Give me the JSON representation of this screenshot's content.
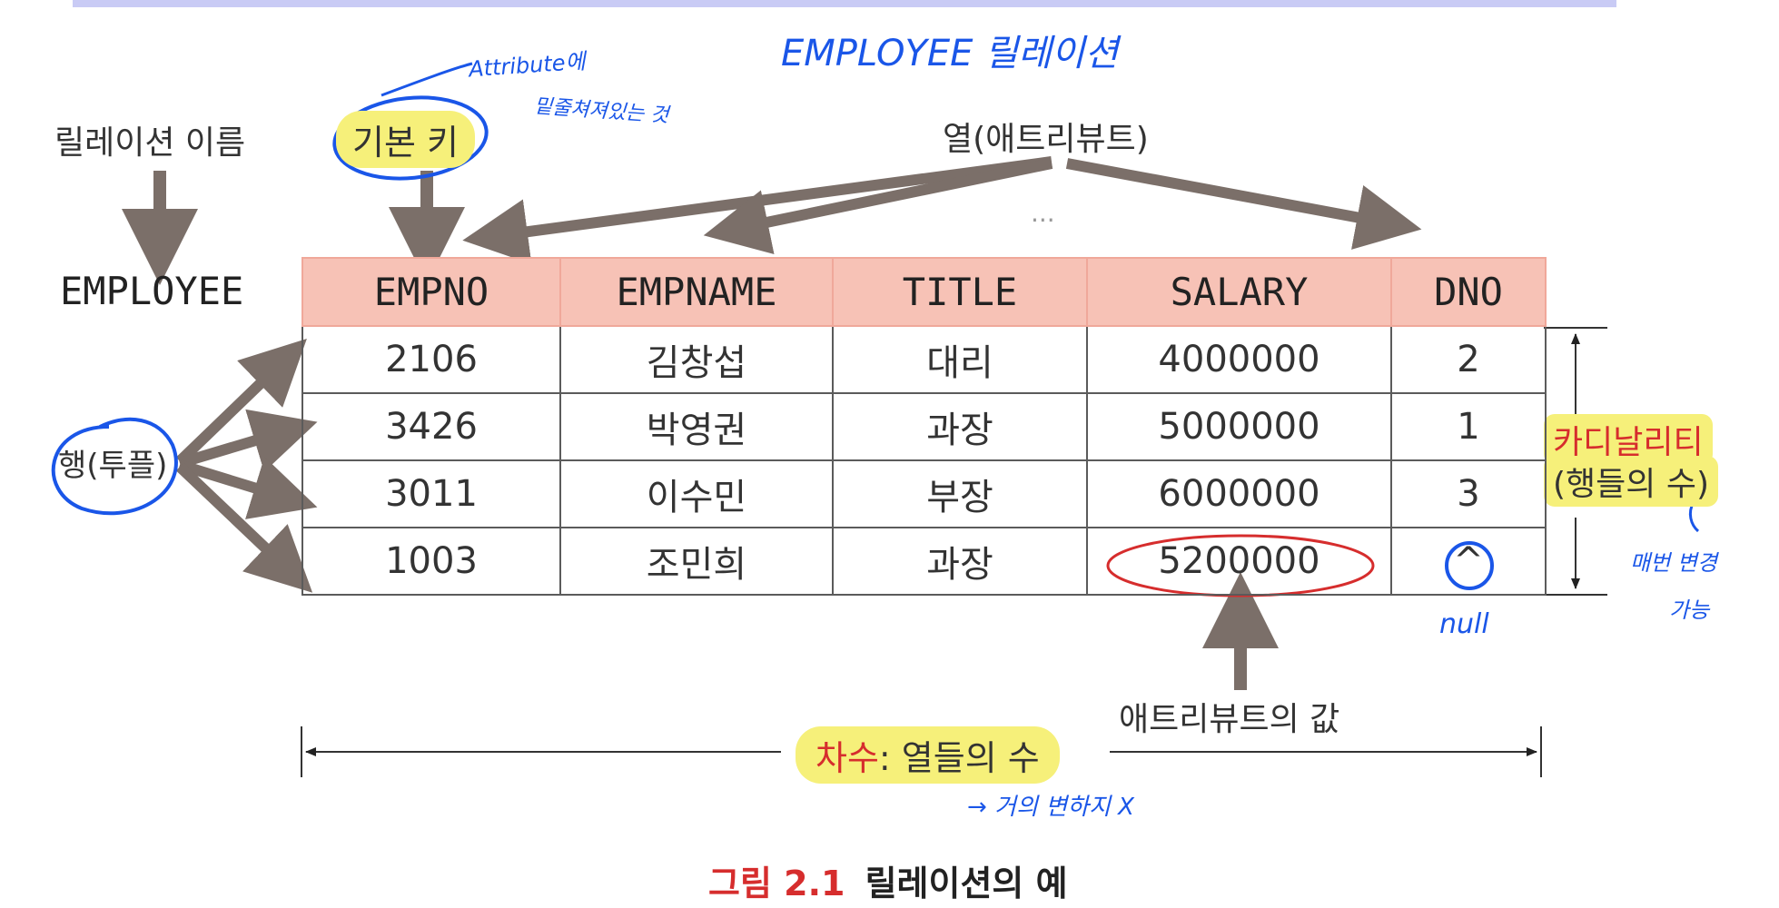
{
  "labels": {
    "relation_name_caption": "릴레이션 이름",
    "relation_name": "EMPLOYEE",
    "primary_key": "기본 키",
    "columns_caption": "열(애트리뷰트)",
    "ellipsis": "...",
    "rows_caption": "행(투플)",
    "cardinality": "카디날리티",
    "cardinality_desc": "(행들의 수)",
    "attribute_value": "애트리뷰트의 값",
    "degree_term": "차수",
    "degree_desc": ": 열들의 수",
    "figure_number": "그림 2.1",
    "figure_title": "릴레이션의 예"
  },
  "table": {
    "headers": [
      "EMPNO",
      "EMPNAME",
      "TITLE",
      "SALARY",
      "DNO"
    ],
    "rows": [
      [
        "2106",
        "김창섭",
        "대리",
        "4000000",
        "2"
      ],
      [
        "3426",
        "박영권",
        "과장",
        "5000000",
        "1"
      ],
      [
        "3011",
        "이수민",
        "부장",
        "6000000",
        "3"
      ],
      [
        "1003",
        "조민희",
        "과장",
        "5200000",
        "^"
      ]
    ]
  },
  "handwritten": {
    "top_title": "EMPLOYEE 릴레이션",
    "attribute_note": "Attribute에",
    "attribute_note2": "밑줄쳐져있는 것",
    "null_note": "null",
    "cardinality_note": "매번 변경",
    "cardinality_note2": "가능",
    "degree_note": "→ 거의 변하지 X"
  },
  "colors": {
    "arrow": "#7b6f69",
    "header_fill": "#f7c2b6",
    "highlight": "#f6f07a",
    "accent_red": "#d62d2d",
    "pen_blue": "#1a56e8"
  }
}
